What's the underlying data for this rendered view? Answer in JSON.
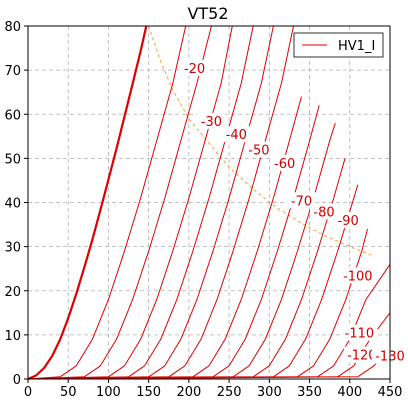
{
  "chart_data": {
    "type": "line",
    "title": "VT52",
    "xlabel": "",
    "ylabel": "",
    "xlim": [
      0,
      450
    ],
    "ylim": [
      0,
      80
    ],
    "x_ticks": [
      "0",
      "50",
      "100",
      "150",
      "200",
      "250",
      "300",
      "350",
      "400",
      "450"
    ],
    "y_ticks": [
      "0",
      "10",
      "20",
      "30",
      "40",
      "50",
      "60",
      "70",
      "80"
    ],
    "grid": true,
    "legend": {
      "position": "top-right",
      "entries": [
        "HV1_I"
      ]
    },
    "colors": {
      "curve": "#dd0000",
      "dissipation": "#f0a030",
      "grid": "#b0b0b0"
    },
    "curve_labels": [
      {
        "text": "-20",
        "x": 207,
        "y": 70.5
      },
      {
        "text": "-30",
        "x": 228,
        "y": 58.5
      },
      {
        "text": "-40",
        "x": 259,
        "y": 55.5
      },
      {
        "text": "-50",
        "x": 287,
        "y": 52
      },
      {
        "text": "-60",
        "x": 319,
        "y": 49
      },
      {
        "text": "-70",
        "x": 340,
        "y": 40.5
      },
      {
        "text": "-80",
        "x": 368,
        "y": 38
      },
      {
        "text": "-90",
        "x": 398,
        "y": 36
      },
      {
        "text": "-100",
        "x": 410,
        "y": 23.5
      },
      {
        "text": "-110",
        "x": 412,
        "y": 10.5
      },
      {
        "text": "-120",
        "x": 415,
        "y": 5.5
      },
      {
        "text": "-130",
        "x": 450,
        "y": 5.3
      }
    ],
    "series": [
      {
        "bold": true,
        "points": [
          [
            0,
            0
          ],
          [
            10,
            0.8
          ],
          [
            20,
            2.5
          ],
          [
            30,
            5.2
          ],
          [
            40,
            9
          ],
          [
            50,
            13.8
          ],
          [
            60,
            19.3
          ],
          [
            70,
            25.3
          ],
          [
            80,
            31.6
          ],
          [
            90,
            38.3
          ],
          [
            100,
            45.2
          ],
          [
            110,
            52.2
          ],
          [
            120,
            59.5
          ],
          [
            130,
            66.9
          ],
          [
            140,
            74.3
          ],
          [
            147,
            80
          ]
        ]
      },
      {
        "bold": false,
        "points": [
          [
            0,
            0
          ],
          [
            40,
            0.5
          ],
          [
            60,
            3
          ],
          [
            80,
            9
          ],
          [
            100,
            18
          ],
          [
            120,
            29
          ],
          [
            140,
            41
          ],
          [
            160,
            54
          ],
          [
            180,
            67
          ],
          [
            196,
            80
          ]
        ]
      },
      {
        "bold": false,
        "points": [
          [
            0,
            0
          ],
          [
            70,
            0.5
          ],
          [
            90,
            3
          ],
          [
            110,
            9
          ],
          [
            130,
            18
          ],
          [
            150,
            29
          ],
          [
            170,
            41
          ],
          [
            190,
            54
          ],
          [
            210,
            67
          ],
          [
            228,
            80
          ]
        ]
      },
      {
        "bold": false,
        "points": [
          [
            0,
            0
          ],
          [
            100,
            0.5
          ],
          [
            120,
            3
          ],
          [
            140,
            9
          ],
          [
            160,
            18
          ],
          [
            180,
            29
          ],
          [
            200,
            41
          ],
          [
            220,
            54
          ],
          [
            240,
            67
          ],
          [
            254,
            80
          ]
        ]
      },
      {
        "bold": false,
        "points": [
          [
            0,
            0
          ],
          [
            125,
            0.5
          ],
          [
            145,
            3
          ],
          [
            165,
            9
          ],
          [
            185,
            18
          ],
          [
            205,
            29
          ],
          [
            225,
            41
          ],
          [
            245,
            54
          ],
          [
            265,
            67
          ],
          [
            280,
            80
          ]
        ]
      },
      {
        "bold": false,
        "points": [
          [
            0,
            0
          ],
          [
            150,
            0.5
          ],
          [
            170,
            3
          ],
          [
            190,
            9
          ],
          [
            210,
            18
          ],
          [
            230,
            29
          ],
          [
            250,
            41
          ],
          [
            270,
            54
          ],
          [
            290,
            67
          ],
          [
            305,
            80
          ]
        ]
      },
      {
        "bold": false,
        "points": [
          [
            0,
            0
          ],
          [
            175,
            0.5
          ],
          [
            195,
            3
          ],
          [
            215,
            9
          ],
          [
            235,
            18
          ],
          [
            255,
            29
          ],
          [
            275,
            41
          ],
          [
            295,
            54
          ],
          [
            315,
            67
          ],
          [
            330,
            80
          ]
        ]
      },
      {
        "bold": false,
        "points": [
          [
            0,
            0
          ],
          [
            205,
            0.5
          ],
          [
            225,
            3
          ],
          [
            245,
            9
          ],
          [
            265,
            18
          ],
          [
            285,
            29
          ],
          [
            305,
            41
          ],
          [
            325,
            54
          ],
          [
            340,
            64
          ]
        ]
      },
      {
        "bold": false,
        "points": [
          [
            0,
            0
          ],
          [
            230,
            0.5
          ],
          [
            250,
            3
          ],
          [
            270,
            9
          ],
          [
            290,
            18
          ],
          [
            310,
            29
          ],
          [
            330,
            41
          ],
          [
            350,
            54
          ],
          [
            362,
            62
          ]
        ]
      },
      {
        "bold": false,
        "points": [
          [
            0,
            0
          ],
          [
            255,
            0.5
          ],
          [
            275,
            3
          ],
          [
            295,
            9
          ],
          [
            315,
            18
          ],
          [
            335,
            29
          ],
          [
            355,
            41
          ],
          [
            375,
            54
          ],
          [
            382,
            58
          ]
        ]
      },
      {
        "bold": false,
        "points": [
          [
            0,
            0
          ],
          [
            280,
            0.5
          ],
          [
            300,
            3
          ],
          [
            320,
            9
          ],
          [
            340,
            18
          ],
          [
            360,
            29
          ],
          [
            380,
            41
          ],
          [
            394,
            50
          ]
        ]
      },
      {
        "bold": false,
        "points": [
          [
            0,
            0
          ],
          [
            305,
            0.5
          ],
          [
            325,
            3
          ],
          [
            345,
            9
          ],
          [
            365,
            18
          ],
          [
            385,
            29
          ],
          [
            405,
            41
          ],
          [
            410,
            44
          ]
        ]
      },
      {
        "bold": false,
        "points": [
          [
            0,
            0
          ],
          [
            335,
            0.5
          ],
          [
            355,
            3
          ],
          [
            375,
            9
          ],
          [
            395,
            18
          ],
          [
            415,
            29
          ],
          [
            422,
            34
          ]
        ]
      },
      {
        "bold": false,
        "points": [
          [
            0,
            0
          ],
          [
            360,
            0.5
          ],
          [
            380,
            3
          ],
          [
            400,
            9
          ],
          [
            420,
            18
          ],
          [
            450,
            26
          ]
        ]
      },
      {
        "bold": false,
        "points": [
          [
            0,
            0
          ],
          [
            385,
            0.5
          ],
          [
            405,
            3
          ],
          [
            425,
            9
          ],
          [
            450,
            15
          ]
        ]
      },
      {
        "bold": false,
        "points": [
          [
            0,
            0
          ],
          [
            410,
            0.5
          ],
          [
            430,
            3
          ],
          [
            450,
            7
          ]
        ]
      }
    ],
    "dissipation_curve": [
      [
        150,
        80
      ],
      [
        165,
        72
      ],
      [
        180,
        65.5
      ],
      [
        200,
        59
      ],
      [
        220,
        54.5
      ],
      [
        250,
        48
      ],
      [
        280,
        43
      ],
      [
        310,
        38.7
      ],
      [
        340,
        35.3
      ],
      [
        370,
        32.4
      ],
      [
        400,
        30
      ],
      [
        428,
        28
      ]
    ]
  }
}
